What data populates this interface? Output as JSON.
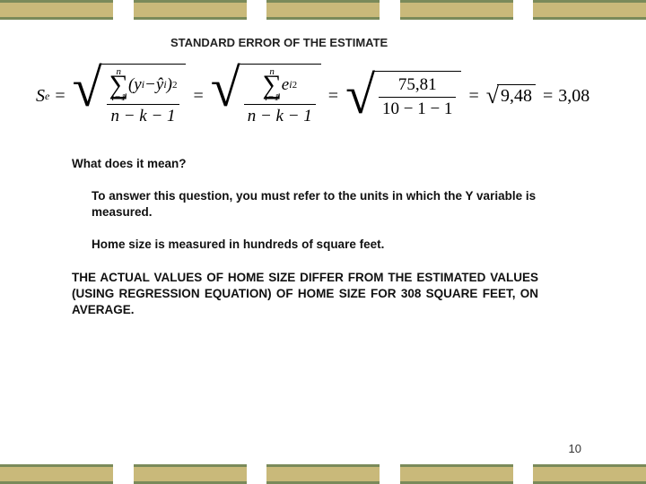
{
  "title": "STANDARD ERROR OF THE ESTIMATE",
  "formula": {
    "lhs_var": "S",
    "lhs_sub": "e",
    "sum_upper": "n",
    "sum_lower": "i=1",
    "term1_open": "(",
    "term1_y": "y",
    "term1_sub": "i",
    "term1_minus": " − ",
    "term1_yhat": "ŷ",
    "term1_sub2": "i",
    "term1_close": ")",
    "term1_sq": "2",
    "denom": "n − k − 1",
    "resid_var": "e",
    "resid_sub": "i",
    "resid_sq": "2",
    "numeric_num": "75,81",
    "numeric_den": "10 − 1 − 1",
    "sqrt_val": "9,48",
    "result": "3,08"
  },
  "question": "What does it mean?",
  "para1": "To answer this question, you must refer to the units in which the Y variable is measured.",
  "para2": "Home size is measured in hundreds of square feet.",
  "para3": "THE ACTUAL VALUES OF HOME SIZE DIFFER FROM THE ESTIMATED VALUES (USING REGRESSION EQUATION) OF HOME SIZE FOR 308 SQUARE FEET, ON AVERAGE.",
  "page_number": "10",
  "colors": {
    "block_fill": "#c9b97a",
    "block_border": "#7a8a5a",
    "text": "#111111",
    "bg": "#ffffff"
  }
}
